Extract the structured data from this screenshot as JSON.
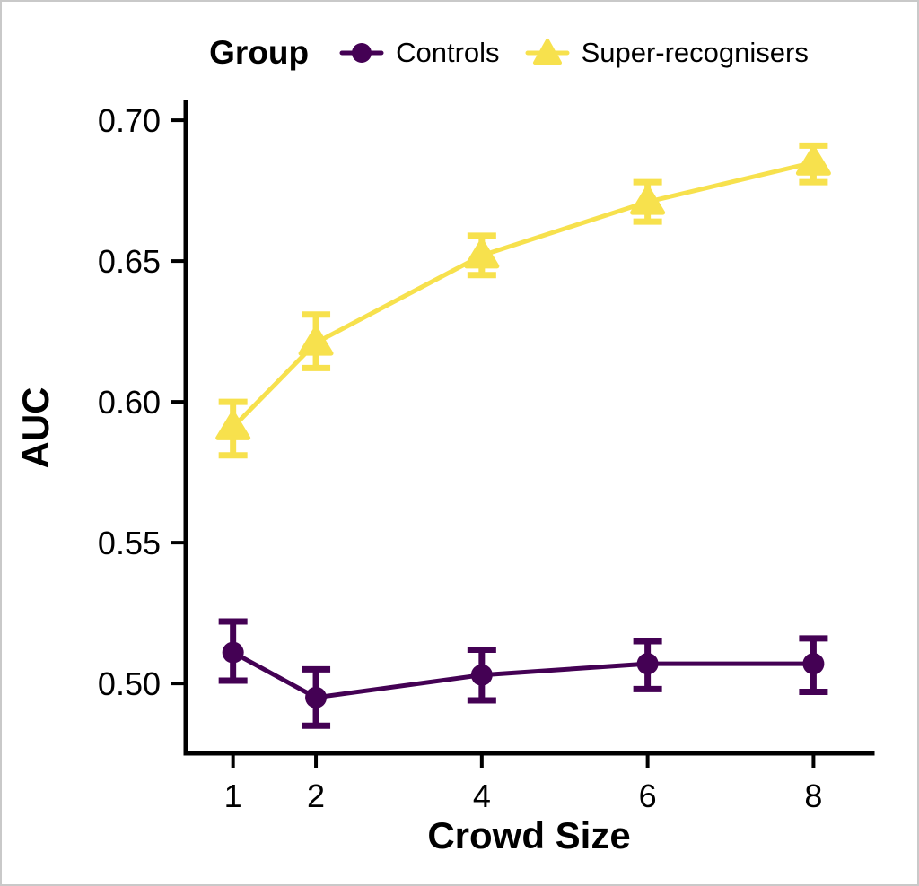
{
  "figure": {
    "background": "#ffffff",
    "border_color": "#c9c9c9",
    "axis_color": "#000000",
    "text_color": "#000000"
  },
  "legend": {
    "title": "Group",
    "position": "top",
    "entries": [
      {
        "label": "Controls",
        "marker": "circle",
        "color": "#440154"
      },
      {
        "label": "Super-recognisers",
        "marker": "triangle",
        "color": "#F7E14D"
      }
    ]
  },
  "chart_data": {
    "type": "line",
    "title": "",
    "xlabel": "Crowd Size",
    "ylabel": "AUC",
    "grid": false,
    "legend_position": "top",
    "x_ticks": [
      1,
      2,
      4,
      6,
      8
    ],
    "xlim": [
      0.43,
      8.71
    ],
    "y_ticks": [
      0.5,
      0.55,
      0.6,
      0.65,
      0.7
    ],
    "ylim": [
      0.4752,
      0.7064
    ],
    "error_bars": true,
    "series": [
      {
        "name": "Controls",
        "color": "#440154",
        "marker": "circle",
        "x": [
          1,
          2,
          4,
          6,
          8
        ],
        "y": [
          0.511,
          0.495,
          0.503,
          0.507,
          0.507
        ],
        "y_lo": [
          0.501,
          0.485,
          0.494,
          0.498,
          0.497
        ],
        "y_hi": [
          0.522,
          0.505,
          0.512,
          0.515,
          0.516
        ]
      },
      {
        "name": "Super-recognisers",
        "color": "#F7E14D",
        "marker": "triangle",
        "x": [
          1,
          2,
          4,
          6,
          8
        ],
        "y": [
          0.591,
          0.621,
          0.652,
          0.671,
          0.685
        ],
        "y_lo": [
          0.581,
          0.612,
          0.645,
          0.664,
          0.678
        ],
        "y_hi": [
          0.6,
          0.631,
          0.659,
          0.678,
          0.691
        ]
      }
    ]
  }
}
